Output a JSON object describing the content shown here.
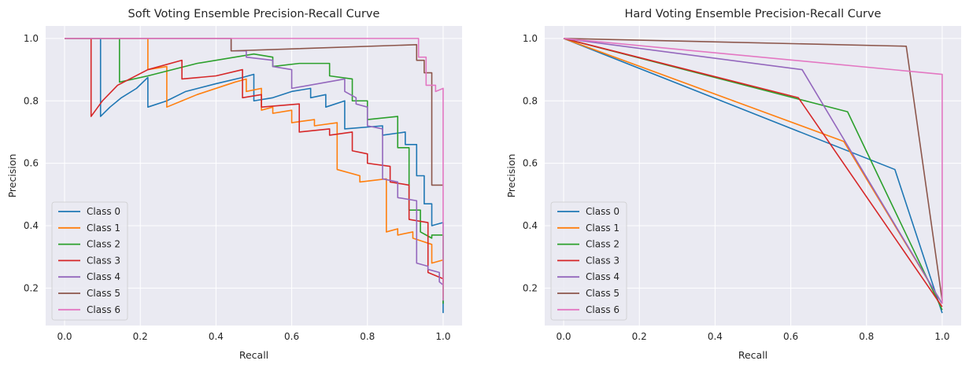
{
  "chart_data": [
    {
      "type": "line",
      "title": "Soft Voting Ensemble Precision-Recall Curve",
      "xlabel": "Recall",
      "ylabel": "Precision",
      "xlim": [
        -0.05,
        1.05
      ],
      "ylim": [
        0.08,
        1.04
      ],
      "xticks": [
        "0.0",
        "0.2",
        "0.4",
        "0.6",
        "0.8",
        "1.0"
      ],
      "yticks": [
        "0.2",
        "0.4",
        "0.6",
        "0.8",
        "1.0"
      ],
      "grid": true,
      "legend_position": "lower-left",
      "series": [
        {
          "name": "Class 0",
          "color": "#1f77b4",
          "x": [
            0.0,
            0.095,
            0.095,
            0.12,
            0.15,
            0.19,
            0.22,
            0.22,
            0.27,
            0.32,
            0.4,
            0.47,
            0.5,
            0.5,
            0.55,
            0.6,
            0.65,
            0.65,
            0.69,
            0.69,
            0.74,
            0.74,
            0.84,
            0.84,
            0.9,
            0.9,
            0.93,
            0.93,
            0.95,
            0.95,
            0.97,
            0.97,
            1.0,
            1.0
          ],
          "y": [
            1.0,
            1.0,
            0.75,
            0.78,
            0.81,
            0.84,
            0.875,
            0.78,
            0.8,
            0.83,
            0.855,
            0.875,
            0.885,
            0.8,
            0.81,
            0.83,
            0.84,
            0.81,
            0.82,
            0.78,
            0.8,
            0.71,
            0.72,
            0.69,
            0.7,
            0.66,
            0.66,
            0.56,
            0.56,
            0.47,
            0.47,
            0.4,
            0.41,
            0.12
          ]
        },
        {
          "name": "Class 1",
          "color": "#ff7f0e",
          "x": [
            0.0,
            0.22,
            0.22,
            0.27,
            0.27,
            0.35,
            0.45,
            0.48,
            0.48,
            0.52,
            0.52,
            0.55,
            0.55,
            0.6,
            0.6,
            0.66,
            0.66,
            0.72,
            0.72,
            0.78,
            0.78,
            0.85,
            0.85,
            0.88,
            0.88,
            0.92,
            0.92,
            0.97,
            0.97,
            1.0,
            1.0
          ],
          "y": [
            1.0,
            1.0,
            0.9,
            0.91,
            0.78,
            0.82,
            0.86,
            0.87,
            0.83,
            0.84,
            0.77,
            0.78,
            0.76,
            0.77,
            0.73,
            0.74,
            0.72,
            0.73,
            0.58,
            0.56,
            0.54,
            0.55,
            0.38,
            0.39,
            0.37,
            0.38,
            0.36,
            0.34,
            0.28,
            0.29,
            0.17
          ]
        },
        {
          "name": "Class 2",
          "color": "#2ca02c",
          "x": [
            0.0,
            0.145,
            0.145,
            0.22,
            0.35,
            0.5,
            0.55,
            0.55,
            0.62,
            0.7,
            0.7,
            0.76,
            0.76,
            0.8,
            0.8,
            0.88,
            0.88,
            0.91,
            0.91,
            0.94,
            0.94,
            0.97,
            0.97,
            1.0,
            1.0
          ],
          "y": [
            1.0,
            1.0,
            0.86,
            0.88,
            0.92,
            0.95,
            0.94,
            0.91,
            0.92,
            0.92,
            0.88,
            0.87,
            0.8,
            0.8,
            0.74,
            0.75,
            0.65,
            0.65,
            0.45,
            0.45,
            0.38,
            0.36,
            0.37,
            0.37,
            0.15
          ]
        },
        {
          "name": "Class 3",
          "color": "#d62728",
          "x": [
            0.07,
            0.07,
            0.1,
            0.14,
            0.22,
            0.31,
            0.31,
            0.4,
            0.47,
            0.47,
            0.52,
            0.52,
            0.62,
            0.62,
            0.7,
            0.7,
            0.76,
            0.76,
            0.8,
            0.8,
            0.86,
            0.86,
            0.91,
            0.91,
            0.96,
            0.96,
            1.0,
            1.0
          ],
          "y": [
            1.0,
            0.75,
            0.8,
            0.85,
            0.9,
            0.93,
            0.87,
            0.88,
            0.9,
            0.81,
            0.82,
            0.78,
            0.79,
            0.7,
            0.71,
            0.69,
            0.7,
            0.64,
            0.63,
            0.6,
            0.59,
            0.54,
            0.53,
            0.42,
            0.41,
            0.25,
            0.23,
            0.22
          ]
        },
        {
          "name": "Class 4",
          "color": "#9467bd",
          "x": [
            0.0,
            0.44,
            0.44,
            0.48,
            0.48,
            0.55,
            0.55,
            0.6,
            0.6,
            0.74,
            0.74,
            0.77,
            0.77,
            0.8,
            0.8,
            0.84,
            0.84,
            0.88,
            0.88,
            0.93,
            0.93,
            0.96,
            0.96,
            0.99,
            0.99,
            1.0
          ],
          "y": [
            1.0,
            1.0,
            0.96,
            0.96,
            0.94,
            0.93,
            0.91,
            0.9,
            0.84,
            0.87,
            0.83,
            0.81,
            0.79,
            0.78,
            0.72,
            0.71,
            0.55,
            0.54,
            0.49,
            0.48,
            0.28,
            0.27,
            0.26,
            0.25,
            0.22,
            0.21
          ]
        },
        {
          "name": "Class 5",
          "color": "#8c564b",
          "x": [
            0.0,
            0.44,
            0.44,
            0.93,
            0.93,
            0.95,
            0.95,
            0.97,
            0.97,
            1.0
          ],
          "y": [
            1.0,
            1.0,
            0.96,
            0.98,
            0.93,
            0.93,
            0.89,
            0.89,
            0.53,
            0.53
          ]
        },
        {
          "name": "Class 6",
          "color": "#e377c2",
          "x": [
            0.0,
            0.935,
            0.935,
            0.955,
            0.955,
            0.98,
            0.98,
            1.0,
            1.0
          ],
          "y": [
            1.0,
            1.0,
            0.94,
            0.94,
            0.85,
            0.85,
            0.83,
            0.84,
            0.16
          ]
        }
      ]
    },
    {
      "type": "line",
      "title": "Hard Voting Ensemble Precision-Recall Curve",
      "xlabel": "Recall",
      "ylabel": "Precision",
      "xlim": [
        -0.05,
        1.05
      ],
      "ylim": [
        0.08,
        1.04
      ],
      "xticks": [
        "0.0",
        "0.2",
        "0.4",
        "0.6",
        "0.8",
        "1.0"
      ],
      "yticks": [
        "0.2",
        "0.4",
        "0.6",
        "0.8",
        "1.0"
      ],
      "grid": true,
      "legend_position": "lower-left",
      "series": [
        {
          "name": "Class 0",
          "color": "#1f77b4",
          "x": [
            0.0,
            0.875,
            1.0
          ],
          "y": [
            1.0,
            0.58,
            0.12
          ]
        },
        {
          "name": "Class 1",
          "color": "#ff7f0e",
          "x": [
            0.0,
            0.74,
            1.0
          ],
          "y": [
            1.0,
            0.67,
            0.15
          ]
        },
        {
          "name": "Class 2",
          "color": "#2ca02c",
          "x": [
            0.0,
            0.75,
            1.0
          ],
          "y": [
            1.0,
            0.765,
            0.13
          ]
        },
        {
          "name": "Class 3",
          "color": "#d62728",
          "x": [
            0.0,
            0.62,
            1.0
          ],
          "y": [
            1.0,
            0.81,
            0.14
          ]
        },
        {
          "name": "Class 4",
          "color": "#9467bd",
          "x": [
            0.0,
            0.63,
            1.0
          ],
          "y": [
            1.0,
            0.9,
            0.15
          ]
        },
        {
          "name": "Class 5",
          "color": "#8c564b",
          "x": [
            0.0,
            0.905,
            1.0
          ],
          "y": [
            1.0,
            0.975,
            0.16
          ]
        },
        {
          "name": "Class 6",
          "color": "#e377c2",
          "x": [
            0.0,
            1.0,
            1.0
          ],
          "y": [
            1.0,
            0.885,
            0.15
          ]
        }
      ]
    }
  ]
}
